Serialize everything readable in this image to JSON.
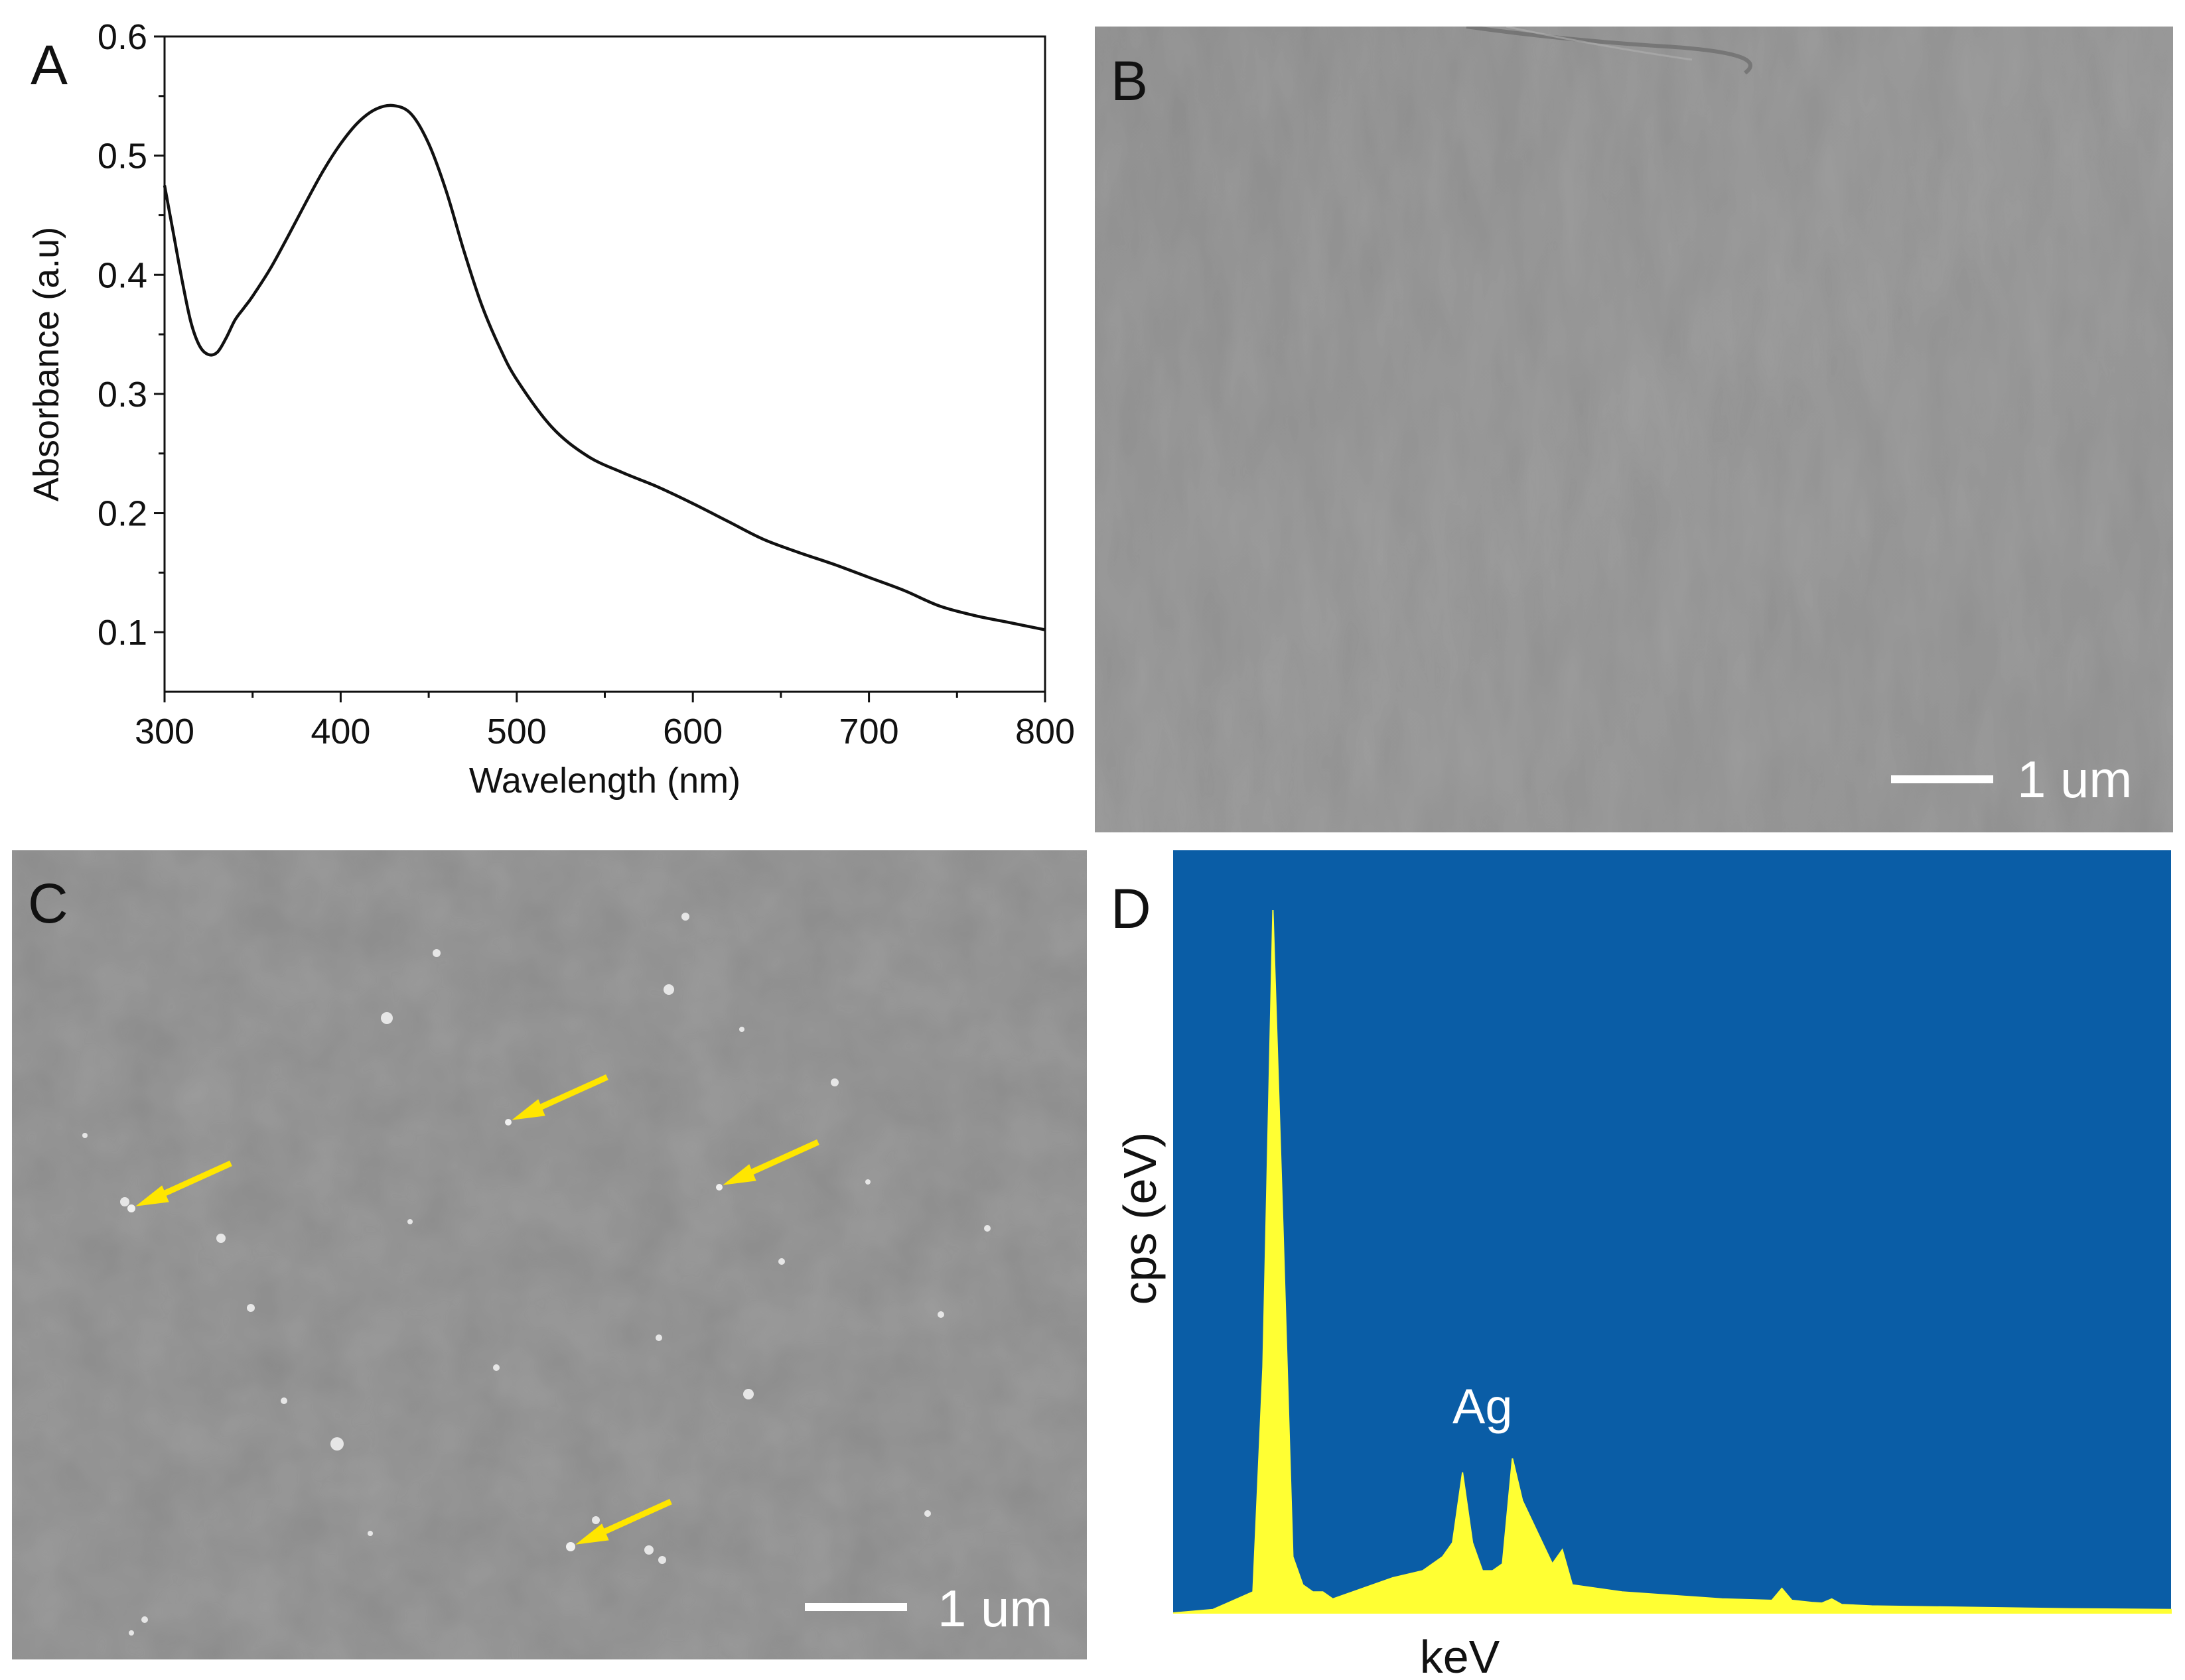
{
  "figure": {
    "panels": [
      {
        "letter": "A"
      },
      {
        "letter": "B"
      },
      {
        "letter": "C"
      },
      {
        "letter": "D"
      }
    ]
  },
  "panel_b": {
    "scalebar": "1 um"
  },
  "panel_c": {
    "scalebar": "1 um",
    "arrow_color": "#FFE600",
    "arrows": 4
  },
  "panel_d": {
    "background": "#0A5DA6",
    "spectrum_color": "#FFFF33"
  },
  "chart_data": [
    {
      "type": "line",
      "xlabel": "Wavelength (nm)",
      "ylabel": "Absorbance (a.u)",
      "xlim": [
        300,
        800
      ],
      "ylim": [
        0.05,
        0.6
      ],
      "xticks": [
        "300",
        "400",
        "500",
        "600",
        "700",
        "800"
      ],
      "yticks": [
        "0.1",
        "0.2",
        "0.3",
        "0.4",
        "0.5",
        "0.6"
      ],
      "grid": false,
      "x": [
        300,
        305,
        310,
        315,
        320,
        325,
        330,
        335,
        340,
        345,
        350,
        360,
        370,
        380,
        390,
        400,
        410,
        420,
        430,
        440,
        450,
        460,
        470,
        480,
        490,
        500,
        520,
        540,
        560,
        580,
        600,
        620,
        640,
        660,
        680,
        700,
        720,
        740,
        760,
        780,
        800
      ],
      "y": [
        0.475,
        0.435,
        0.395,
        0.36,
        0.34,
        0.333,
        0.335,
        0.347,
        0.362,
        0.372,
        0.382,
        0.405,
        0.432,
        0.46,
        0.487,
        0.51,
        0.528,
        0.539,
        0.542,
        0.535,
        0.51,
        0.47,
        0.42,
        0.375,
        0.34,
        0.312,
        0.272,
        0.248,
        0.234,
        0.222,
        0.208,
        0.193,
        0.178,
        0.167,
        0.157,
        0.146,
        0.135,
        0.122,
        0.114,
        0.108,
        0.102
      ]
    },
    {
      "type": "area",
      "xlabel": "keV",
      "ylabel": "cps (eV)",
      "annotations": [
        "Ag"
      ],
      "x": [
        0.0,
        0.04,
        0.08,
        0.09,
        0.1,
        0.11,
        0.12,
        0.13,
        0.14,
        0.15,
        0.16,
        0.18,
        0.2,
        0.22,
        0.25,
        0.27,
        0.28,
        0.29,
        0.3,
        0.31,
        0.32,
        0.33,
        0.34,
        0.35,
        0.36,
        0.37,
        0.38,
        0.39,
        0.4,
        0.45,
        0.5,
        0.55,
        0.6,
        0.6,
        0.61,
        0.62,
        0.64,
        0.65,
        0.66,
        0.67,
        0.7,
        0.8,
        0.9,
        1.0
      ],
      "y": [
        0.0,
        0.005,
        0.03,
        0.35,
        1.0,
        0.55,
        0.08,
        0.04,
        0.03,
        0.03,
        0.02,
        0.03,
        0.04,
        0.05,
        0.06,
        0.08,
        0.1,
        0.2,
        0.1,
        0.06,
        0.06,
        0.07,
        0.22,
        0.16,
        0.13,
        0.1,
        0.07,
        0.09,
        0.04,
        0.03,
        0.025,
        0.02,
        0.018,
        0.018,
        0.035,
        0.018,
        0.015,
        0.014,
        0.02,
        0.012,
        0.01,
        0.008,
        0.006,
        0.005
      ]
    }
  ]
}
